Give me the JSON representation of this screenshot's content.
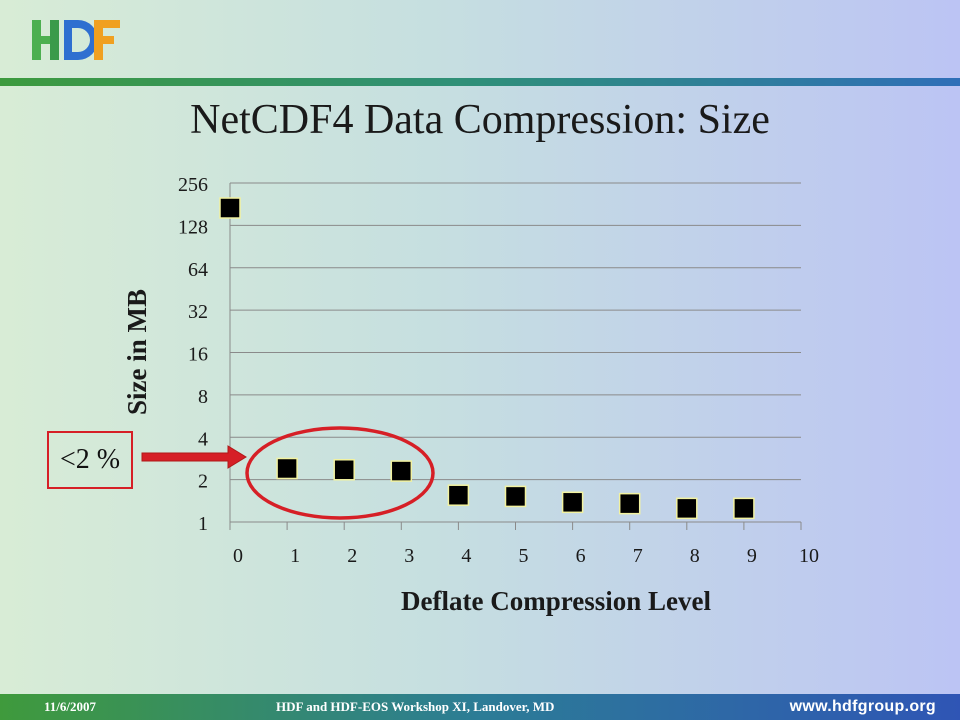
{
  "slide": {
    "title": "NetCDF4 Data Compression: Size",
    "callout_label": "<2 %",
    "logo_text": "HDF"
  },
  "footer": {
    "date": "11/6/2007",
    "event": "HDF and HDF-EOS Workshop XI, Landover, MD",
    "url": "www.hdfgroup.org"
  },
  "colors": {
    "accent_red": "#d61f26",
    "marker_fill": "#000000",
    "marker_border": "#f2f2a0",
    "logo_green": "#4caf50",
    "logo_blue": "#2f6fd0",
    "logo_orange": "#f0a020"
  },
  "chart_data": {
    "type": "scatter",
    "title": "",
    "xlabel": "Deflate Compression Level",
    "ylabel": "Size in MB",
    "xlim": [
      0,
      10
    ],
    "ylim": [
      1,
      256
    ],
    "y_scale": "log2",
    "x_ticks": [
      "0",
      "1",
      "2",
      "3",
      "4",
      "5",
      "6",
      "7",
      "8",
      "9",
      "10"
    ],
    "y_ticks": [
      "1",
      "2",
      "4",
      "8",
      "16",
      "32",
      "64",
      "128",
      "256"
    ],
    "grid": "horizontal",
    "x": [
      0,
      1,
      2,
      3,
      4,
      5,
      6,
      7,
      8,
      9
    ],
    "y": [
      170,
      2.4,
      2.35,
      2.3,
      1.55,
      1.52,
      1.38,
      1.35,
      1.25,
      1.25
    ]
  }
}
